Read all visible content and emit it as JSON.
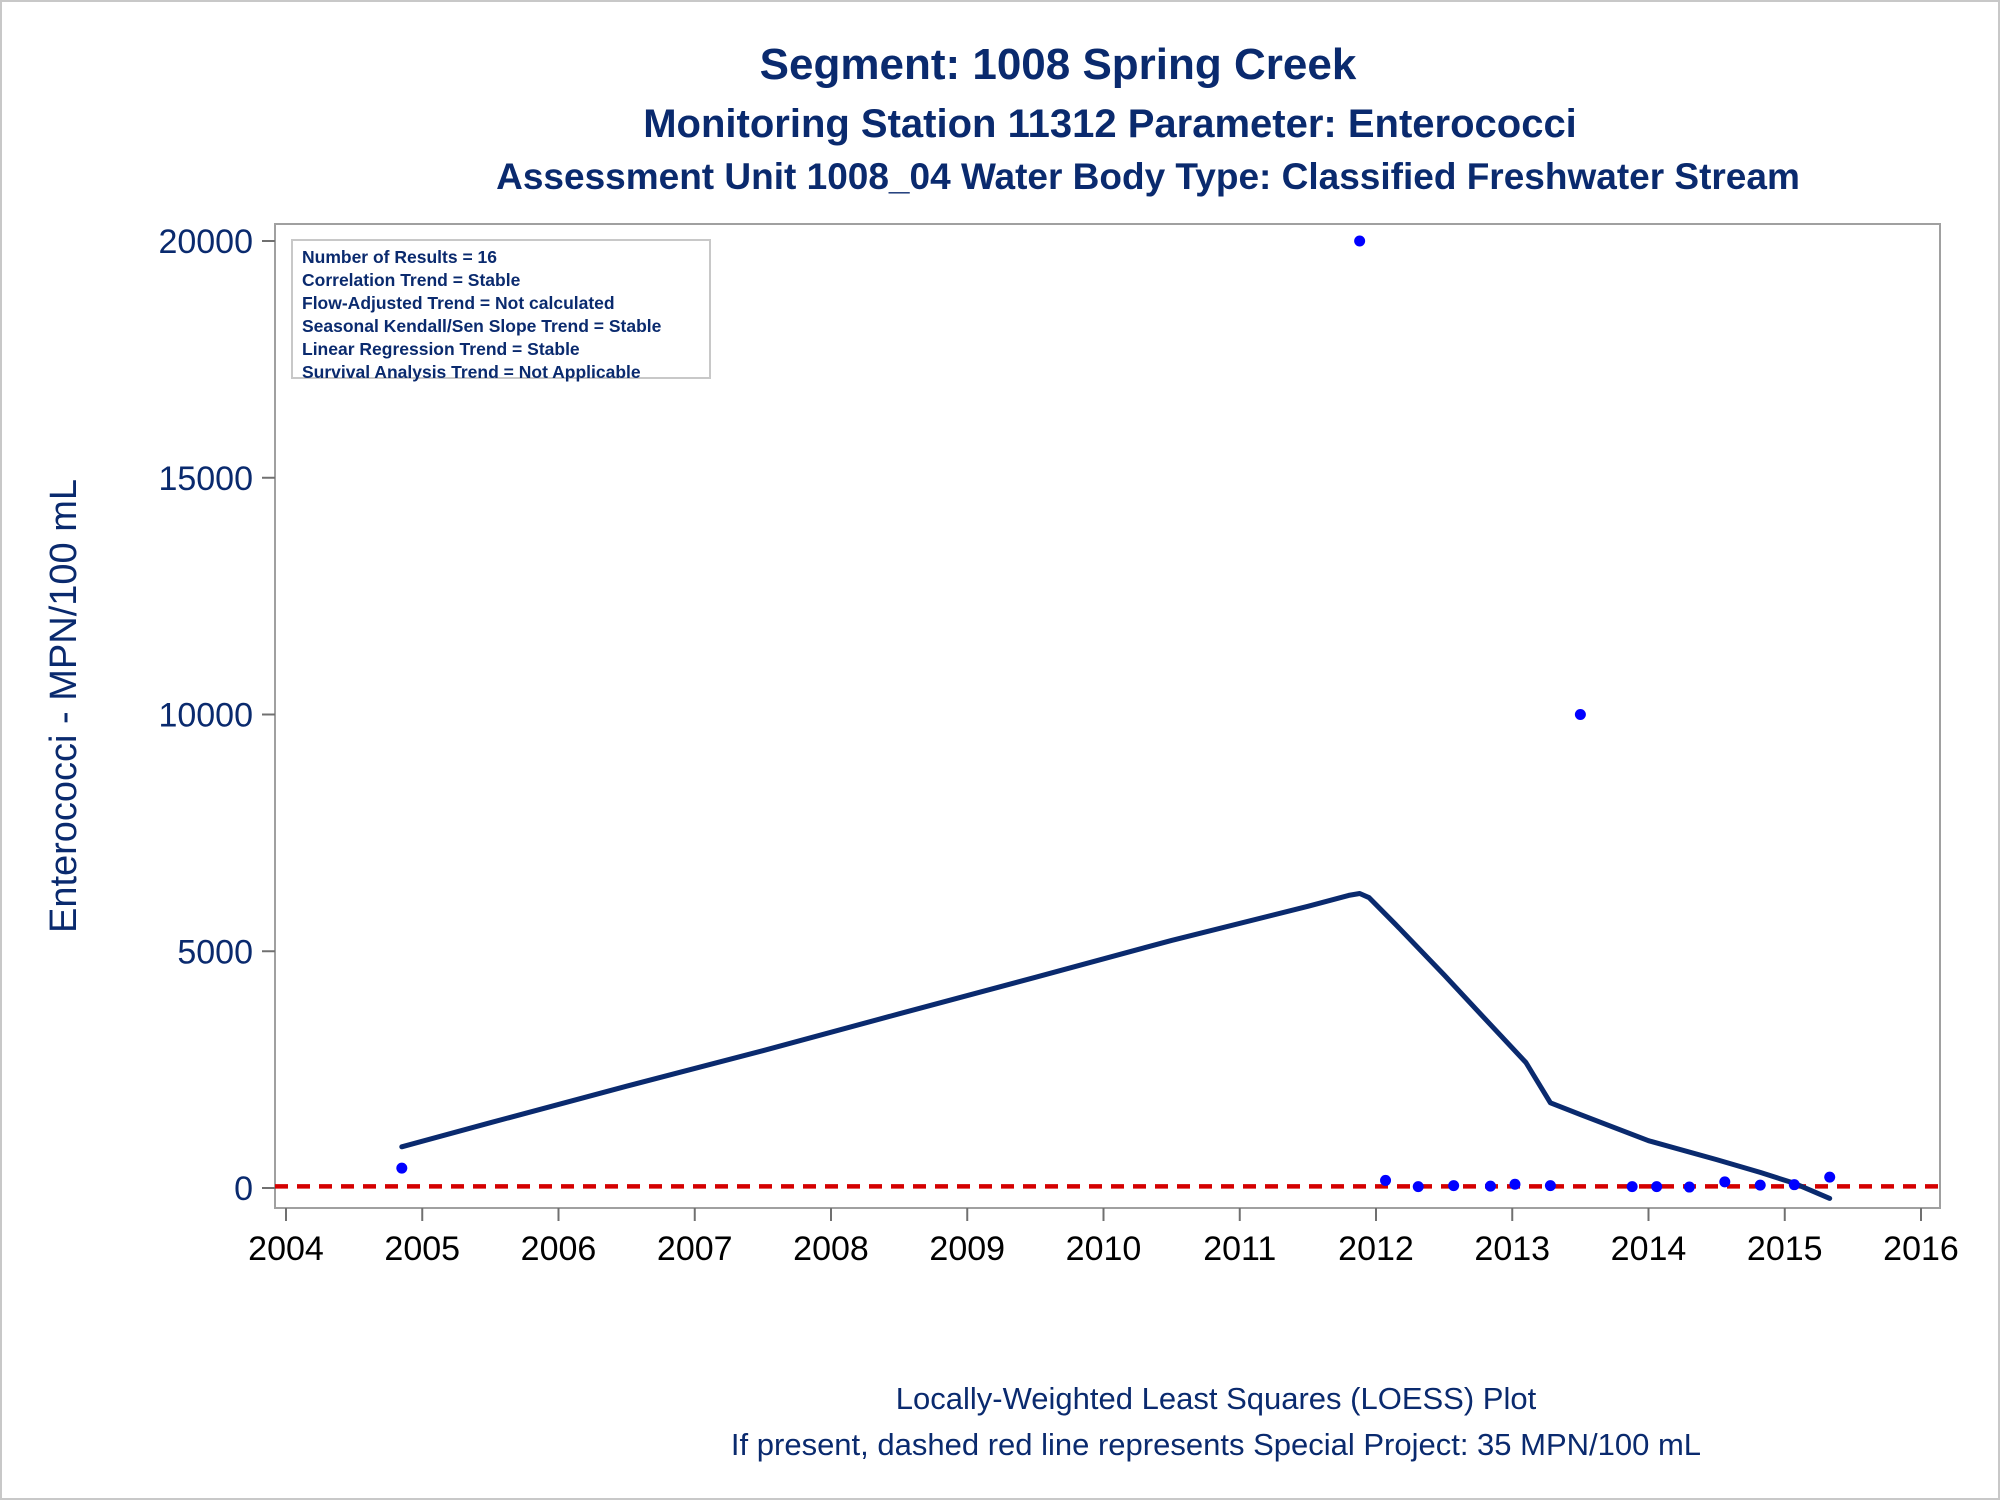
{
  "titles": {
    "line1": "Segment: 1008  Spring Creek",
    "line2": "Monitoring Station 11312 Parameter: Enterococci",
    "line3": "Assessment Unit 1008_04   Water Body Type: Classified Freshwater Stream"
  },
  "footnotes": {
    "line1": "Locally-Weighted Least Squares (LOESS) Plot",
    "line2": "If present, dashed red line represents Special Project: 35 MPN/100 mL"
  },
  "stats": [
    "Number of Results = 16",
    "Correlation Trend = Stable",
    "Flow-Adjusted Trend = Not calculated",
    "Seasonal Kendall/Sen Slope Trend = Stable",
    "Linear Regression Trend = Stable",
    "Survival Analysis Trend = Not Applicable"
  ],
  "colors": {
    "title": "#0a2a6e",
    "points": "#0000ff",
    "loess": "#0a2a6e",
    "reference": "#d40000",
    "frame": "#a0a0a0"
  },
  "chart_data": {
    "type": "scatter",
    "ylabel": "Enterococci - MPN/100 mL",
    "xlabel": "",
    "xlim": [
      2004,
      2016
    ],
    "ylim": [
      0,
      20000
    ],
    "x_ticks": [
      2004,
      2005,
      2006,
      2007,
      2008,
      2009,
      2010,
      2011,
      2012,
      2013,
      2014,
      2015,
      2016
    ],
    "y_ticks": [
      0,
      5000,
      10000,
      15000,
      20000
    ],
    "points": [
      {
        "x": 2004.85,
        "y": 420
      },
      {
        "x": 2011.88,
        "y": 20000
      },
      {
        "x": 2012.07,
        "y": 160
      },
      {
        "x": 2012.31,
        "y": 30
      },
      {
        "x": 2012.57,
        "y": 50
      },
      {
        "x": 2012.84,
        "y": 40
      },
      {
        "x": 2013.02,
        "y": 80
      },
      {
        "x": 2013.28,
        "y": 50
      },
      {
        "x": 2013.5,
        "y": 10000
      },
      {
        "x": 2013.88,
        "y": 30
      },
      {
        "x": 2014.06,
        "y": 30
      },
      {
        "x": 2014.3,
        "y": 20
      },
      {
        "x": 2014.56,
        "y": 130
      },
      {
        "x": 2014.82,
        "y": 60
      },
      {
        "x": 2015.07,
        "y": 70
      },
      {
        "x": 2015.33,
        "y": 230
      }
    ],
    "loess": [
      {
        "x": 2004.85,
        "y": 870
      },
      {
        "x": 2005.5,
        "y": 1380
      },
      {
        "x": 2006.5,
        "y": 2150
      },
      {
        "x": 2007.5,
        "y": 2900
      },
      {
        "x": 2008.5,
        "y": 3680
      },
      {
        "x": 2009.5,
        "y": 4450
      },
      {
        "x": 2010.5,
        "y": 5230
      },
      {
        "x": 2011.5,
        "y": 5950
      },
      {
        "x": 2011.8,
        "y": 6180
      },
      {
        "x": 2011.88,
        "y": 6220
      },
      {
        "x": 2011.95,
        "y": 6130
      },
      {
        "x": 2012.15,
        "y": 5550
      },
      {
        "x": 2012.5,
        "y": 4500
      },
      {
        "x": 2012.84,
        "y": 3450
      },
      {
        "x": 2013.1,
        "y": 2650
      },
      {
        "x": 2013.28,
        "y": 1800
      },
      {
        "x": 2013.5,
        "y": 1550
      },
      {
        "x": 2014.0,
        "y": 1000
      },
      {
        "x": 2014.5,
        "y": 600
      },
      {
        "x": 2014.82,
        "y": 330
      },
      {
        "x": 2015.07,
        "y": 100
      },
      {
        "x": 2015.33,
        "y": -220
      }
    ],
    "reference_line": {
      "y": 35,
      "style": "dashed"
    },
    "grid": false
  }
}
